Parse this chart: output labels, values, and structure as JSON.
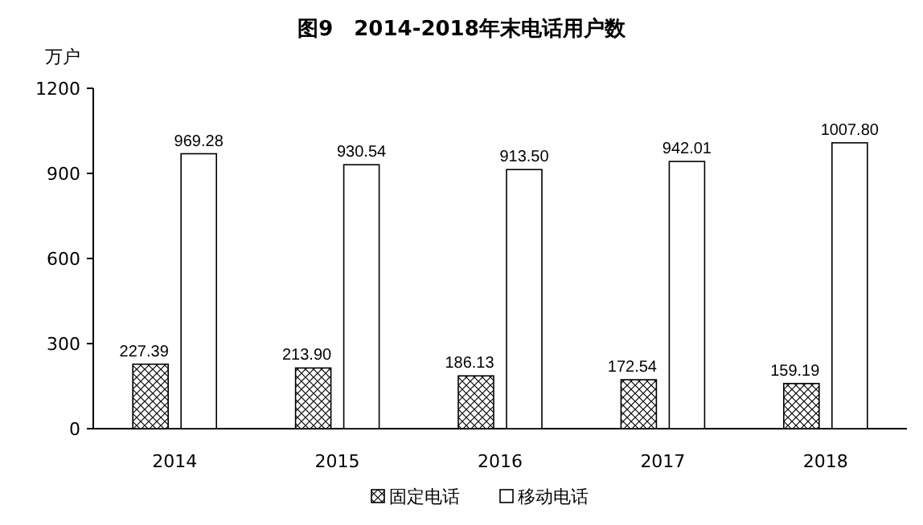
{
  "chart_data": {
    "type": "bar",
    "title": "图9　2014-2018年末电话用户数",
    "ylabel": "万户",
    "categories": [
      "2014",
      "2015",
      "2016",
      "2017",
      "2018"
    ],
    "series": [
      {
        "name": "固定电话",
        "color": "#000000",
        "values": [
          227.39,
          213.9,
          186.13,
          172.54,
          159.19
        ],
        "value_labels": [
          "227.39",
          "213.90",
          "186.13",
          "172.54",
          "159.19"
        ]
      },
      {
        "name": "移动电话",
        "color": "#ffffff",
        "values": [
          969.28,
          930.54,
          913.5,
          942.01,
          1007.8
        ],
        "value_labels": [
          "969.28",
          "930.54",
          "913.50",
          "942.01",
          "1007.80"
        ]
      }
    ],
    "ylim": [
      0,
      1200
    ],
    "yticks": [
      0,
      300,
      600,
      900,
      1200
    ],
    "grid": false,
    "legend": "bottom"
  }
}
